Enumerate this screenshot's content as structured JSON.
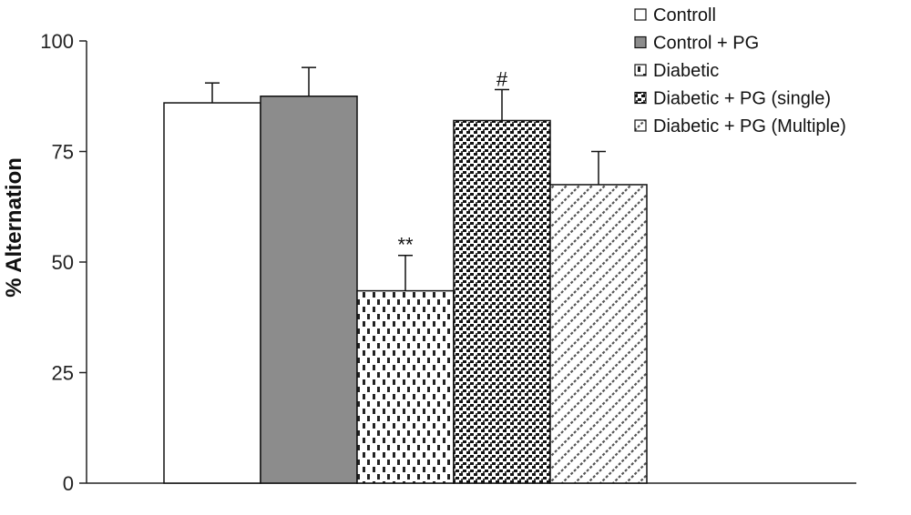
{
  "chart_data": {
    "type": "bar",
    "title": "",
    "xlabel": "",
    "ylabel": "% Alternation",
    "ylim": [
      0,
      100
    ],
    "yticks": [
      0,
      25,
      50,
      75,
      100
    ],
    "grid": false,
    "legend_position": "top-right",
    "categories": [
      "Control",
      "Control + PG",
      "Diabetic",
      "Diabetic + PG (single)",
      "Diabetic + PG (Multiple)"
    ],
    "values": [
      86,
      87.5,
      43.5,
      82,
      67.5
    ],
    "errors": [
      4.5,
      6.5,
      8,
      7,
      7.5
    ],
    "annotations": [
      "",
      "",
      "**",
      "#",
      ""
    ],
    "fills": [
      "white",
      "#8c8c8c",
      "dashes",
      "dots",
      "diagonal"
    ],
    "legend": [
      "Controll",
      "Control + PG",
      "Diabetic",
      "Diabetic + PG (single)",
      "Diabetic + PG (Multiple)"
    ]
  }
}
